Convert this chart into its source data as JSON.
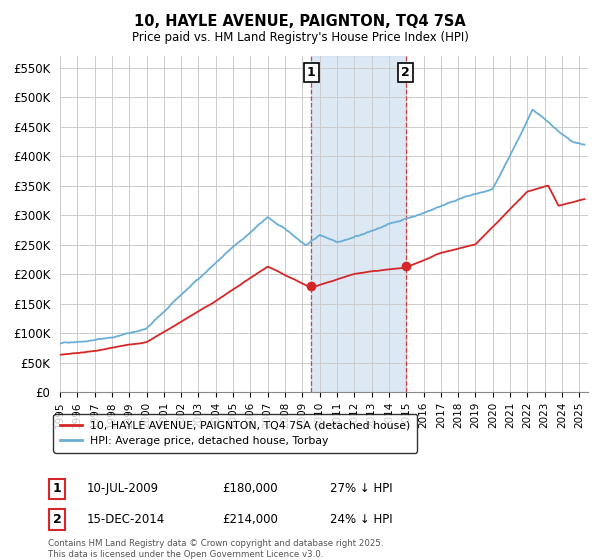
{
  "title": "10, HAYLE AVENUE, PAIGNTON, TQ4 7SA",
  "subtitle": "Price paid vs. HM Land Registry's House Price Index (HPI)",
  "ylim": [
    0,
    570000
  ],
  "yticks": [
    0,
    50000,
    100000,
    150000,
    200000,
    250000,
    300000,
    350000,
    400000,
    450000,
    500000,
    550000
  ],
  "ytick_labels": [
    "£0",
    "£50K",
    "£100K",
    "£150K",
    "£200K",
    "£250K",
    "£300K",
    "£350K",
    "£400K",
    "£450K",
    "£500K",
    "£550K"
  ],
  "xlim_start": 1995.0,
  "xlim_end": 2025.5,
  "sale1_x": 2009.52,
  "sale1_y": 180000,
  "sale1_label": "1",
  "sale1_date": "10-JUL-2009",
  "sale1_price": "£180,000",
  "sale1_hpi": "27% ↓ HPI",
  "sale2_x": 2014.96,
  "sale2_y": 214000,
  "sale2_label": "2",
  "sale2_date": "15-DEC-2014",
  "sale2_price": "£214,000",
  "sale2_hpi": "24% ↓ HPI",
  "hpi_color": "#6baed6",
  "price_color": "#d62728",
  "shading_color": "#c6dbef",
  "background_color": "#ffffff",
  "grid_color": "#cccccc",
  "legend_label_price": "10, HAYLE AVENUE, PAIGNTON, TQ4 7SA (detached house)",
  "legend_label_hpi": "HPI: Average price, detached house, Torbay",
  "footer": "Contains HM Land Registry data © Crown copyright and database right 2025.\nThis data is licensed under the Open Government Licence v3.0."
}
